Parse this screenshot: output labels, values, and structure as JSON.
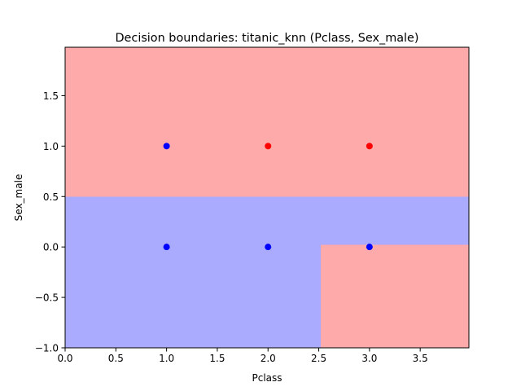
{
  "chart_data": {
    "type": "scatter",
    "title": "Decision boundaries: titanic_knn (Pclass, Sex_male)",
    "xlabel": "Pclass",
    "ylabel": "Sex_male",
    "xlim": [
      0.0,
      3.98
    ],
    "ylim": [
      -1.0,
      1.98
    ],
    "x_ticks": [
      {
        "value": 0.0,
        "label": "0.0"
      },
      {
        "value": 0.5,
        "label": "0.5"
      },
      {
        "value": 1.0,
        "label": "1.0"
      },
      {
        "value": 1.5,
        "label": "1.5"
      },
      {
        "value": 2.0,
        "label": "2.0"
      },
      {
        "value": 2.5,
        "label": "2.5"
      },
      {
        "value": 3.0,
        "label": "3.0"
      },
      {
        "value": 3.5,
        "label": "3.5"
      }
    ],
    "y_ticks": [
      {
        "value": -1.0,
        "label": "−1.0"
      },
      {
        "value": -0.5,
        "label": "−0.5"
      },
      {
        "value": 0.0,
        "label": "0.0"
      },
      {
        "value": 0.5,
        "label": "0.5"
      },
      {
        "value": 1.0,
        "label": "1.0"
      },
      {
        "value": 1.5,
        "label": "1.5"
      }
    ],
    "grid": false,
    "colors": {
      "region_red": "#ffaaaa",
      "region_blue": "#aaaaff",
      "point_red": "#ff0000",
      "point_blue": "#0000ff"
    },
    "regions": [
      {
        "class": "red",
        "x": [
          0.0,
          3.98
        ],
        "y": [
          0.5,
          1.98
        ]
      },
      {
        "class": "blue",
        "x": [
          0.0,
          2.52
        ],
        "y": [
          -1.0,
          0.5
        ]
      },
      {
        "class": "blue",
        "x": [
          2.52,
          3.98
        ],
        "y": [
          0.02,
          0.5
        ]
      },
      {
        "class": "red",
        "x": [
          2.52,
          3.98
        ],
        "y": [
          -1.0,
          0.02
        ]
      }
    ],
    "points": [
      {
        "x": 1,
        "y": 1,
        "class": "blue"
      },
      {
        "x": 2,
        "y": 1,
        "class": "red"
      },
      {
        "x": 3,
        "y": 1,
        "class": "red"
      },
      {
        "x": 1,
        "y": 0,
        "class": "blue"
      },
      {
        "x": 2,
        "y": 0,
        "class": "blue"
      },
      {
        "x": 3,
        "y": 0,
        "class": "blue"
      }
    ]
  }
}
